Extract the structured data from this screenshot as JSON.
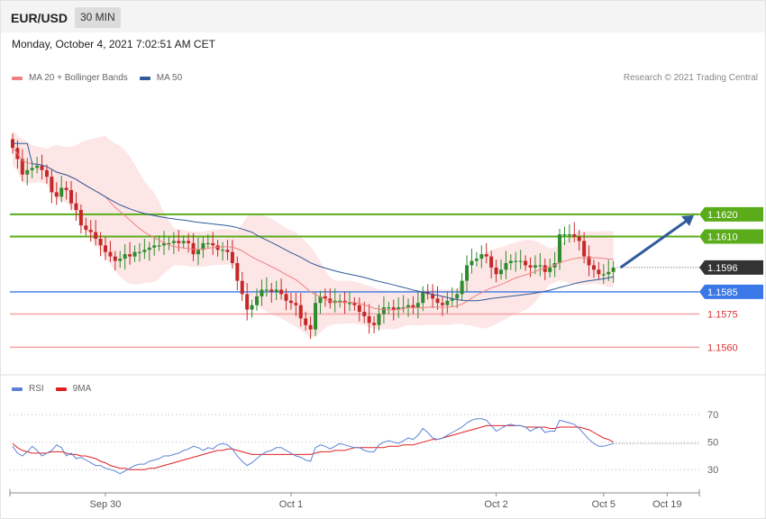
{
  "header": {
    "symbol": "EUR/USD",
    "timeframe": "30 MIN"
  },
  "timestamp": "Monday, October 4, 2021 7:02:51 AM CET",
  "legend": {
    "ma20_label": "MA 20 + Bollinger Bands",
    "ma50_label": "MA 50",
    "rsi_label": "RSI",
    "ma9_label": "9MA"
  },
  "credit": "Research © 2021 Trading Central",
  "colors": {
    "ma20": "#f08080",
    "ma50": "#2f5b9a",
    "band_fill": "#fde3e3",
    "resistance": "#5aac1a",
    "support_blue": "#3b78e7",
    "support_red": "#f4a3a3",
    "current": "#333333",
    "rsi": "#5b82d6",
    "rsi_ma": "#e02020",
    "candle_up": "#2e8b2e",
    "candle_down": "#c62828",
    "arrow": "#2f5b9a"
  },
  "chart_data": [
    {
      "type": "candlestick",
      "ylim": [
        1.1552,
        1.1668
      ],
      "current_price": {
        "value": 1.1596,
        "label": "1.1596"
      },
      "levels": [
        {
          "value": 1.162,
          "label": "1.1620",
          "kind": "resistance"
        },
        {
          "value": 1.161,
          "label": "1.1610",
          "kind": "resistance"
        },
        {
          "value": 1.1585,
          "label": "1.1585",
          "kind": "support-blue"
        },
        {
          "value": 1.1575,
          "label": "1.1575",
          "kind": "support-red"
        },
        {
          "value": 1.156,
          "label": "1.1560",
          "kind": "support-red"
        }
      ],
      "closes": [
        1.165,
        1.1645,
        1.1638,
        1.164,
        1.1641,
        1.1642,
        1.164,
        1.1637,
        1.163,
        1.1628,
        1.1632,
        1.1631,
        1.1625,
        1.1622,
        1.1615,
        1.1613,
        1.1612,
        1.1609,
        1.1606,
        1.1603,
        1.1601,
        1.1599,
        1.16,
        1.1602,
        1.1601,
        1.1603,
        1.1603,
        1.1604,
        1.1605,
        1.1606,
        1.1606,
        1.1607,
        1.1607,
        1.1608,
        1.1607,
        1.1608,
        1.1607,
        1.1602,
        1.1604,
        1.1607,
        1.1607,
        1.1606,
        1.1604,
        1.1604,
        1.1603,
        1.1598,
        1.159,
        1.1584,
        1.1577,
        1.1579,
        1.1583,
        1.1586,
        1.1586,
        1.1585,
        1.1586,
        1.1584,
        1.1581,
        1.158,
        1.1579,
        1.1573,
        1.157,
        1.1568,
        1.158,
        1.1583,
        1.1582,
        1.158,
        1.1581,
        1.1581,
        1.158,
        1.158,
        1.1579,
        1.1576,
        1.1574,
        1.1571,
        1.157,
        1.1575,
        1.1578,
        1.1578,
        1.1577,
        1.1578,
        1.1578,
        1.1579,
        1.1578,
        1.158,
        1.1585,
        1.1584,
        1.1582,
        1.158,
        1.1579,
        1.1581,
        1.1582,
        1.1584,
        1.159,
        1.1597,
        1.1599,
        1.16,
        1.1602,
        1.1601,
        1.1596,
        1.1593,
        1.1595,
        1.1598,
        1.1599,
        1.1599,
        1.1599,
        1.1597,
        1.1596,
        1.1597,
        1.1597,
        1.1594,
        1.1596,
        1.1598,
        1.1611,
        1.1611,
        1.1611,
        1.161,
        1.1608,
        1.1601,
        1.1597,
        1.1595,
        1.1593,
        1.1593,
        1.1594,
        1.1596
      ]
    },
    {
      "type": "line",
      "name": "RSI",
      "yticks": [
        70,
        50,
        30
      ],
      "ylim": [
        17,
        80
      ],
      "rsi": [
        47,
        42,
        40,
        43,
        47,
        44,
        40,
        42,
        44,
        48,
        46,
        40,
        42,
        38,
        39,
        37,
        35,
        33,
        33,
        31,
        30,
        29,
        27,
        29,
        31,
        33,
        34,
        34,
        36,
        37,
        38,
        40,
        40,
        41,
        42,
        44,
        45,
        47,
        46,
        44,
        46,
        45,
        48,
        49,
        48,
        45,
        40,
        36,
        33,
        35,
        38,
        41,
        43,
        44,
        46,
        46,
        44,
        42,
        40,
        39,
        37,
        36,
        46,
        48,
        47,
        45,
        47,
        49,
        48,
        47,
        46,
        46,
        44,
        43,
        43,
        48,
        50,
        51,
        50,
        49,
        51,
        53,
        52,
        55,
        60,
        57,
        53,
        52,
        53,
        55,
        57,
        59,
        61,
        64,
        66,
        67,
        67,
        66,
        62,
        58,
        60,
        62,
        63,
        62,
        62,
        61,
        58,
        60,
        61,
        57,
        58,
        58,
        66,
        65,
        64,
        63,
        60,
        56,
        52,
        49,
        47,
        47,
        48,
        49
      ],
      "ma9": [
        49,
        46,
        44,
        43,
        42,
        42,
        42,
        42,
        43,
        43,
        43,
        42,
        41,
        41,
        40,
        40,
        39,
        38,
        36,
        35,
        33,
        32,
        31,
        31,
        30,
        30,
        30,
        30,
        31,
        31,
        32,
        33,
        34,
        35,
        36,
        37,
        38,
        39,
        40,
        41,
        42,
        43,
        44,
        44,
        45,
        45,
        44,
        43,
        42,
        41,
        41,
        41,
        41,
        41,
        41,
        41,
        41,
        41,
        41,
        41,
        41,
        41,
        42,
        43,
        43,
        43,
        44,
        44,
        44,
        45,
        46,
        46,
        46,
        46,
        46,
        46,
        46,
        47,
        47,
        47,
        48,
        48,
        48,
        49,
        50,
        51,
        52,
        52,
        53,
        54,
        55,
        56,
        57,
        58,
        59,
        60,
        61,
        62,
        62,
        62,
        62,
        62,
        62,
        62,
        62,
        61,
        61,
        61,
        61,
        61,
        60,
        60,
        61,
        61,
        61,
        61,
        61,
        60,
        59,
        57,
        55,
        53,
        52,
        50
      ]
    }
  ],
  "xaxis": {
    "labels": [
      {
        "text": "Sep 30",
        "index": 19
      },
      {
        "text": "Oct 1",
        "index": 57
      },
      {
        "text": "Oct 2",
        "index": 99
      },
      {
        "text": "Oct 5",
        "index": 121
      },
      {
        "text": "Oct 19",
        "index": 134
      }
    ]
  }
}
